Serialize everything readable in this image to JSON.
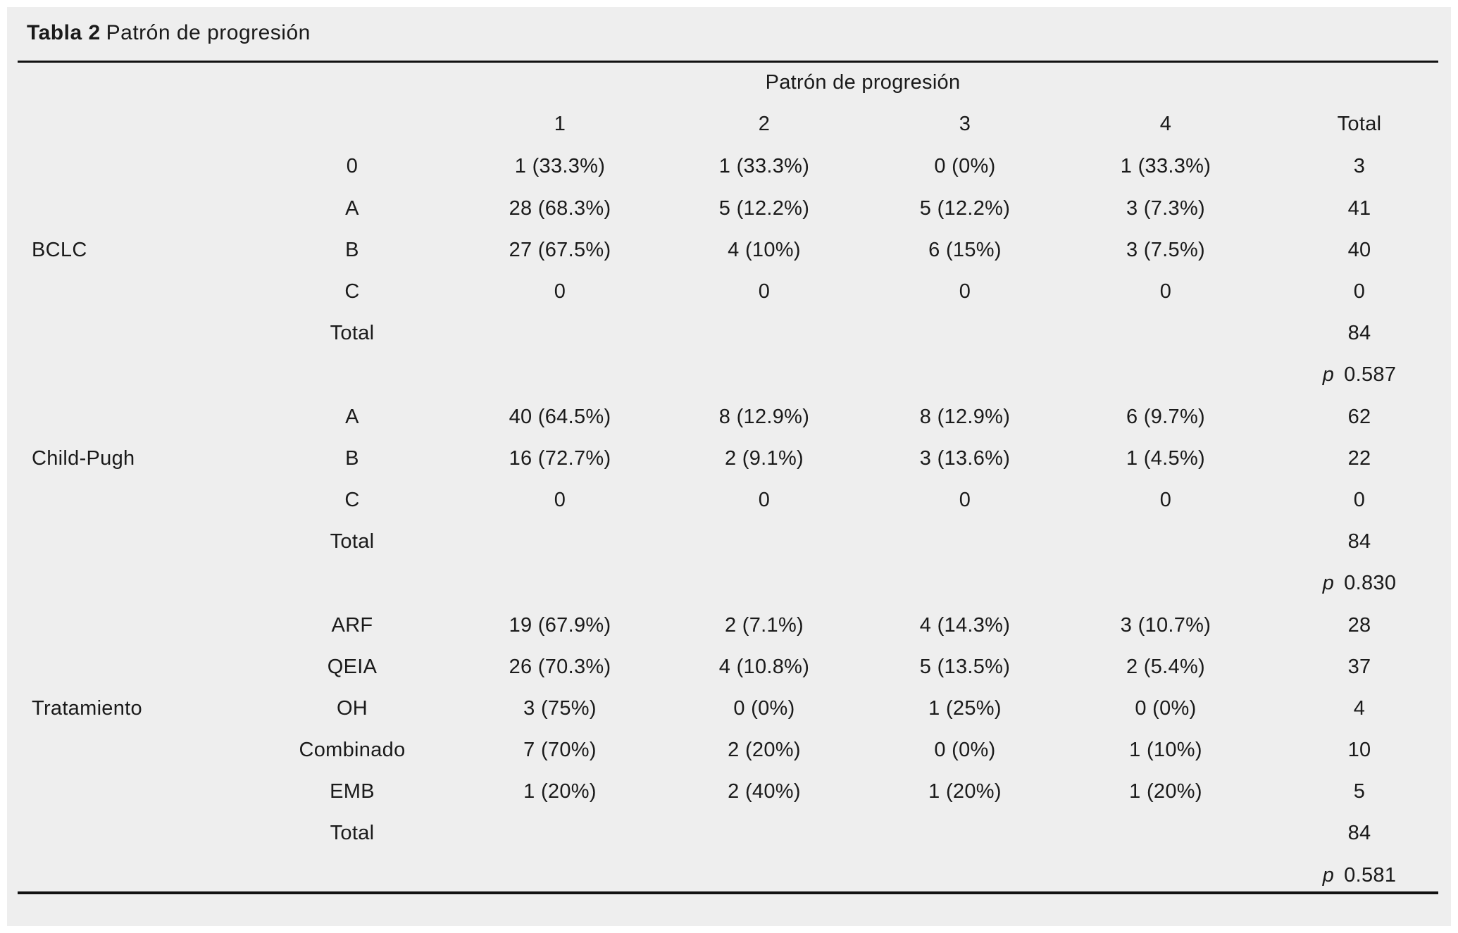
{
  "title": {
    "bold": "Tabla 2",
    "rest": "Patrón de progresión"
  },
  "table": {
    "spanning_header": "Patrón de progresión",
    "columns": [
      "1",
      "2",
      "3",
      "4",
      "Total"
    ],
    "sections": [
      {
        "group": "BCLC",
        "group_row_index": 2,
        "rows": [
          {
            "label": "0",
            "values": [
              "1 (33.3%)",
              "1 (33.3%)",
              "0 (0%)",
              "1 (33.3%)",
              "3"
            ]
          },
          {
            "label": "A",
            "values": [
              "28 (68.3%)",
              "5 (12.2%)",
              "5 (12.2%)",
              "3 (7.3%)",
              "41"
            ]
          },
          {
            "label": "B",
            "values": [
              "27 (67.5%)",
              "4 (10%)",
              "6 (15%)",
              "3 (7.5%)",
              "40"
            ]
          },
          {
            "label": "C",
            "values": [
              "0",
              "0",
              "0",
              "0",
              "0"
            ]
          },
          {
            "label": "Total",
            "values": [
              "",
              "",
              "",
              "",
              "84"
            ]
          }
        ],
        "p_label": "p",
        "p_value": "0.587"
      },
      {
        "group": "Child-Pugh",
        "group_row_index": 1,
        "rows": [
          {
            "label": "A",
            "values": [
              "40 (64.5%)",
              "8 (12.9%)",
              "8 (12.9%)",
              "6 (9.7%)",
              "62"
            ]
          },
          {
            "label": "B",
            "values": [
              "16 (72.7%)",
              "2 (9.1%)",
              "3 (13.6%)",
              "1 (4.5%)",
              "22"
            ]
          },
          {
            "label": "C",
            "values": [
              "0",
              "0",
              "0",
              "0",
              "0"
            ]
          },
          {
            "label": "Total",
            "values": [
              "",
              "",
              "",
              "",
              "84"
            ]
          }
        ],
        "p_label": "p",
        "p_value": "0.830"
      },
      {
        "group": "Tratamiento",
        "group_row_index": 2,
        "rows": [
          {
            "label": "ARF",
            "values": [
              "19 (67.9%)",
              "2 (7.1%)",
              "4 (14.3%)",
              "3 (10.7%)",
              "28"
            ]
          },
          {
            "label": "QEIA",
            "values": [
              "26 (70.3%)",
              "4 (10.8%)",
              "5 (13.5%)",
              "2 (5.4%)",
              "37"
            ]
          },
          {
            "label": "OH",
            "values": [
              "3 (75%)",
              "0 (0%)",
              "1 (25%)",
              "0 (0%)",
              "4"
            ]
          },
          {
            "label": "Combinado",
            "values": [
              "7 (70%)",
              "2 (20%)",
              "0 (0%)",
              "1 (10%)",
              "10"
            ]
          },
          {
            "label": "EMB",
            "values": [
              "1 (20%)",
              "2 (40%)",
              "1 (20%)",
              "1 (20%)",
              "5"
            ]
          },
          {
            "label": "Total",
            "values": [
              "",
              "",
              "",
              "",
              "84"
            ]
          }
        ],
        "p_label": "p",
        "p_value": "0.581"
      }
    ]
  }
}
